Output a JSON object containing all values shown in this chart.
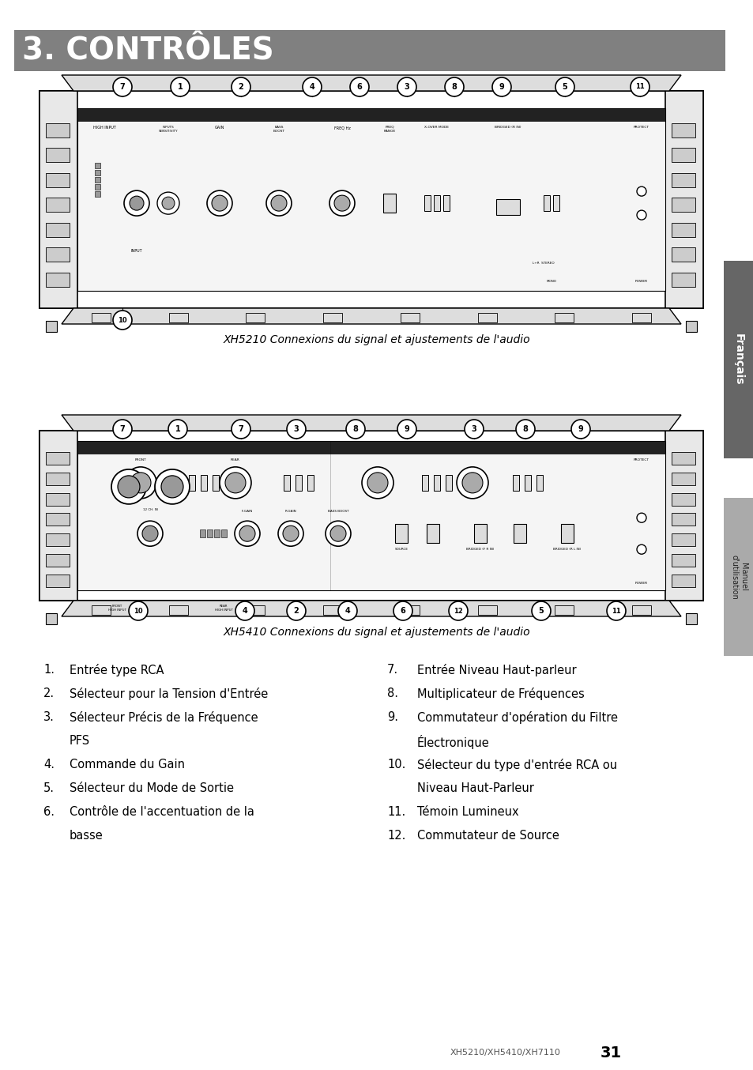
{
  "title": "3. CONTRÔLES",
  "title_bg": "#808080",
  "title_color": "#ffffff",
  "title_fontsize": 28,
  "page_bg": "#ffffff",
  "caption1": "XH5210 Connexions du signal et ajustements de l'audio",
  "caption2": "XH5410 Connexions du signal et ajustements de l'audio",
  "footer_text": "XH5210/XH5410/XH7110",
  "footer_page": "31",
  "sidebar_text": "Français",
  "sidebar_text2": "Manuel\nd'utilisation",
  "sidebar_color": "#666666",
  "sidebar_text_color": "#ffffff",
  "numbers_top1": [
    [
      155,
      "7"
    ],
    [
      228,
      "1"
    ],
    [
      305,
      "2"
    ],
    [
      395,
      "4"
    ],
    [
      455,
      "6"
    ],
    [
      515,
      "3"
    ],
    [
      575,
      "8"
    ],
    [
      635,
      "9"
    ],
    [
      715,
      "5"
    ],
    [
      810,
      "11"
    ]
  ],
  "numbers_top2": [
    [
      155,
      "7"
    ],
    [
      225,
      "1"
    ],
    [
      305,
      "7"
    ],
    [
      375,
      "3"
    ],
    [
      450,
      "8"
    ],
    [
      515,
      "9"
    ],
    [
      600,
      "3"
    ],
    [
      665,
      "8"
    ],
    [
      735,
      "9"
    ]
  ],
  "numbers_bot2": [
    [
      175,
      "10"
    ],
    [
      310,
      "4"
    ],
    [
      375,
      "2"
    ],
    [
      440,
      "4"
    ],
    [
      510,
      "6"
    ],
    [
      580,
      "12"
    ],
    [
      685,
      "5"
    ],
    [
      780,
      "11"
    ]
  ],
  "left_items": [
    [
      "1.",
      "Entrée type RCA",
      false
    ],
    [
      "2.",
      "Sélecteur pour la Tension d'Entrée",
      false
    ],
    [
      "3.",
      "Sélecteur Précis de la Fréquence",
      "PFS"
    ],
    [
      "4.",
      "Commande du Gain",
      false
    ],
    [
      "5.",
      "Sélecteur du Mode de Sortie",
      false
    ],
    [
      "6.",
      "Contrôle de l'accentuation de la",
      "basse"
    ]
  ],
  "right_items": [
    [
      "7.",
      "Entrée Niveau Haut-parleur",
      false
    ],
    [
      "8.",
      "Multiplicateur de Fréquences",
      false
    ],
    [
      "9.",
      "Commutateur d'opération du Filtre",
      "Électronique"
    ],
    [
      "10.",
      "Sélecteur du type d'entrée RCA ou",
      "Niveau Haut-Parleur"
    ],
    [
      "11.",
      "Témoin Lumineux",
      false
    ],
    [
      "12.",
      "Commutateur de Source",
      false
    ]
  ]
}
